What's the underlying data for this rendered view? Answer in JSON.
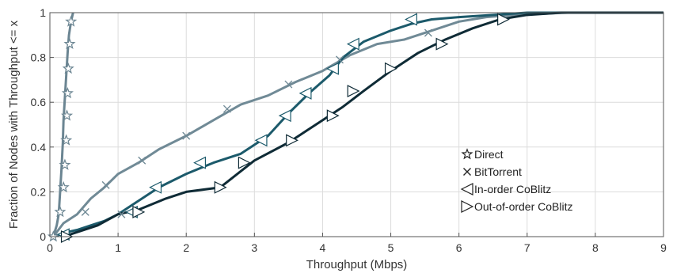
{
  "chart_data": {
    "type": "line",
    "xlabel": "Throughput (Mbps)",
    "ylabel": "Fraction of Nodes with Throughput <= x",
    "xlim": [
      0,
      9
    ],
    "ylim": [
      0,
      1
    ],
    "xticks": [
      0,
      1,
      2,
      3,
      4,
      5,
      6,
      7,
      8,
      9
    ],
    "yticks": [
      0,
      0.2,
      0.4,
      0.6,
      0.8,
      1
    ],
    "xtick_labels": [
      "0",
      "1",
      "2",
      "3",
      "4",
      "5",
      "6",
      "7",
      "8",
      "9"
    ],
    "ytick_labels": [
      "0",
      "0.2",
      "0.4",
      "0.6",
      "0.8",
      "1"
    ],
    "grid": true,
    "legend_position": "right-middle",
    "series": [
      {
        "name": "Direct",
        "color": "#6b8592",
        "marker": "star",
        "x": [
          0.05,
          0.1,
          0.13,
          0.15,
          0.17,
          0.19,
          0.2,
          0.22,
          0.24,
          0.26,
          0.28,
          0.31,
          0.34
        ],
        "y": [
          0,
          0.05,
          0.1,
          0.2,
          0.3,
          0.42,
          0.52,
          0.62,
          0.72,
          0.82,
          0.9,
          0.96,
          1.0
        ],
        "markers": [
          [
            0.05,
            0
          ],
          [
            0.15,
            0.11
          ],
          [
            0.2,
            0.22
          ],
          [
            0.22,
            0.32
          ],
          [
            0.24,
            0.43
          ],
          [
            0.25,
            0.54
          ],
          [
            0.26,
            0.64
          ],
          [
            0.27,
            0.75
          ],
          [
            0.29,
            0.86
          ],
          [
            0.31,
            0.96
          ]
        ]
      },
      {
        "name": "BitTorrent",
        "color": "#708a96",
        "marker": "x",
        "x": [
          0.05,
          0.2,
          0.4,
          0.6,
          0.8,
          1.0,
          1.3,
          1.6,
          2.0,
          2.4,
          2.8,
          3.2,
          3.6,
          4.0,
          4.4,
          4.8,
          5.2,
          5.6,
          6.0,
          6.4,
          6.8,
          7.2,
          7.6,
          8.2,
          9.0
        ],
        "y": [
          0,
          0.06,
          0.1,
          0.17,
          0.22,
          0.28,
          0.33,
          0.39,
          0.45,
          0.52,
          0.59,
          0.63,
          0.69,
          0.74,
          0.81,
          0.86,
          0.88,
          0.92,
          0.96,
          0.98,
          0.99,
          0.995,
          1.0,
          1.0,
          1.0
        ],
        "markers": [
          [
            0.52,
            0.11
          ],
          [
            0.82,
            0.23
          ],
          [
            1.05,
            0.1
          ],
          [
            1.35,
            0.34
          ],
          [
            2.0,
            0.45
          ],
          [
            2.6,
            0.57
          ],
          [
            3.5,
            0.68
          ],
          [
            4.25,
            0.79
          ],
          [
            5.55,
            0.91
          ]
        ]
      },
      {
        "name": "In-order CoBlitz",
        "color": "#1c5a6b",
        "marker": "triangle-left",
        "x": [
          0.05,
          0.15,
          0.25,
          0.4,
          0.6,
          0.8,
          1.0,
          1.3,
          1.6,
          2.0,
          2.4,
          2.8,
          3.2,
          3.5,
          3.8,
          4.1,
          4.3,
          4.6,
          5.0,
          5.3,
          5.6,
          6.0,
          6.5,
          7.0,
          7.6,
          9.0
        ],
        "y": [
          0,
          0.01,
          0.02,
          0.03,
          0.05,
          0.07,
          0.1,
          0.16,
          0.22,
          0.28,
          0.33,
          0.37,
          0.45,
          0.55,
          0.64,
          0.72,
          0.8,
          0.87,
          0.92,
          0.95,
          0.97,
          0.98,
          0.99,
          1.0,
          1.0,
          1.0
        ],
        "markers": [
          [
            0.2,
            0.01
          ],
          [
            1.2,
            0.11
          ],
          [
            1.55,
            0.22
          ],
          [
            2.2,
            0.33
          ],
          [
            3.1,
            0.43
          ],
          [
            3.45,
            0.54
          ],
          [
            3.75,
            0.64
          ],
          [
            4.15,
            0.75
          ],
          [
            4.45,
            0.86
          ],
          [
            5.3,
            0.97
          ]
        ]
      },
      {
        "name": "Out-of-order CoBlitz",
        "color": "#0f2b36",
        "marker": "triangle-right",
        "x": [
          0.2,
          0.4,
          0.7,
          1.0,
          1.3,
          1.7,
          2.0,
          2.5,
          3.0,
          3.5,
          4.0,
          4.3,
          4.6,
          5.0,
          5.4,
          5.8,
          6.2,
          6.6,
          7.0,
          7.5,
          8.0,
          9.0
        ],
        "y": [
          0,
          0.02,
          0.05,
          0.1,
          0.12,
          0.17,
          0.2,
          0.22,
          0.34,
          0.42,
          0.52,
          0.58,
          0.65,
          0.74,
          0.82,
          0.88,
          0.93,
          0.97,
          0.99,
          1.0,
          1.0,
          1.0
        ],
        "markers": [
          [
            0.25,
            0.0
          ],
          [
            1.3,
            0.11
          ],
          [
            2.5,
            0.22
          ],
          [
            2.85,
            0.33
          ],
          [
            3.55,
            0.43
          ],
          [
            4.15,
            0.54
          ],
          [
            4.45,
            0.65
          ],
          [
            5.0,
            0.75
          ],
          [
            5.75,
            0.86
          ],
          [
            6.65,
            0.97
          ]
        ]
      }
    ]
  }
}
